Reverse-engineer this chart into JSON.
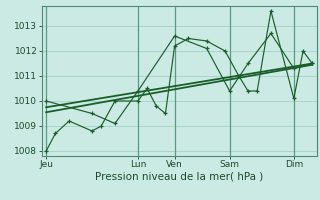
{
  "xlabel": "Pression niveau de la mer( hPa )",
  "background_color": "#cceae4",
  "grid_color": "#aad4cc",
  "line_color": "#1a5e2a",
  "vline_color": "#5a9a80",
  "ylim": [
    1007.8,
    1013.8
  ],
  "xlim": [
    0,
    30
  ],
  "yticks": [
    1008,
    1009,
    1010,
    1011,
    1012,
    1013
  ],
  "day_labels": [
    "Jeu",
    "Lun",
    "Ven",
    "Sam",
    "Dim"
  ],
  "day_positions": [
    0.5,
    10.5,
    14.5,
    20.5,
    27.5
  ],
  "vline_positions": [
    0.5,
    10.5,
    14.5,
    20.5,
    27.5
  ],
  "series1_x": [
    0.5,
    1.5,
    3.0,
    5.5,
    6.5,
    8.0,
    10.5,
    11.5,
    12.5,
    13.5,
    14.5,
    16.0,
    18.0,
    20.0,
    21.5,
    22.5,
    23.5,
    25.0,
    27.5,
    28.5,
    29.5
  ],
  "series1_y": [
    1008.0,
    1008.7,
    1009.2,
    1008.8,
    1009.0,
    1010.0,
    1010.0,
    1010.5,
    1009.8,
    1009.5,
    1012.2,
    1012.5,
    1012.4,
    1012.0,
    1011.0,
    1010.4,
    1010.4,
    1013.6,
    1010.1,
    1012.0,
    1011.5
  ],
  "series2_x": [
    0.5,
    5.5,
    8.0,
    10.5,
    14.5,
    18.0,
    20.5,
    22.5,
    25.0,
    27.5,
    29.5
  ],
  "series2_y": [
    1010.0,
    1009.5,
    1009.1,
    1010.4,
    1012.6,
    1012.1,
    1010.4,
    1011.5,
    1012.7,
    1011.3,
    1011.5
  ],
  "trend1_x": [
    0.5,
    29.5
  ],
  "trend1_y": [
    1009.75,
    1011.5
  ],
  "trend2_x": [
    0.5,
    29.5
  ],
  "trend2_y": [
    1009.55,
    1011.45
  ],
  "tick_label_fontsize": 6.5,
  "xlabel_fontsize": 7.5
}
